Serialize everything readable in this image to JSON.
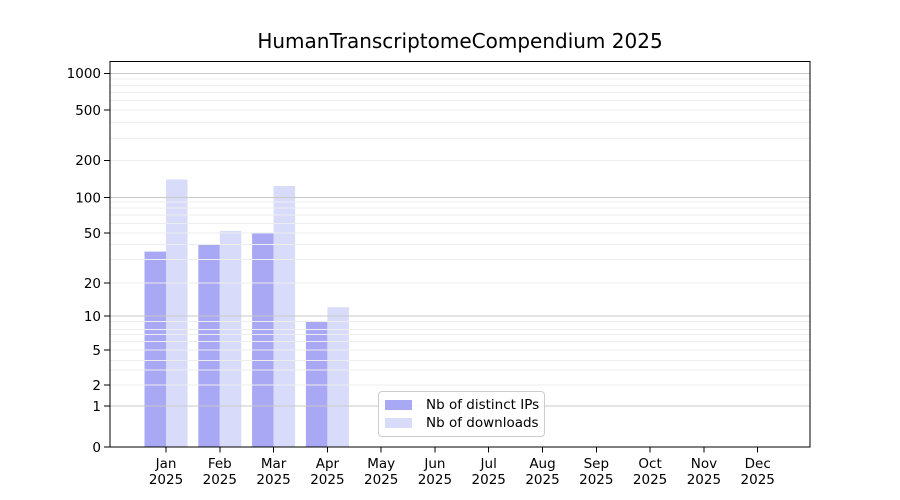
{
  "chart_data": {
    "type": "bar",
    "title": "HumanTranscriptomeCompendium 2025",
    "categories": [
      "Jan 2025",
      "Feb 2025",
      "Mar 2025",
      "Apr 2025",
      "May 2025",
      "Jun 2025",
      "Jul 2025",
      "Aug 2025",
      "Sep 2025",
      "Oct 2025",
      "Nov 2025",
      "Dec 2025"
    ],
    "series": [
      {
        "name": "Nb of distinct IPs",
        "color": "#a8a8f5",
        "values": [
          35,
          40,
          50,
          9,
          0,
          0,
          0,
          0,
          0,
          0,
          0,
          0
        ]
      },
      {
        "name": "Nb of downloads",
        "color": "#d9dbfa",
        "values": [
          140,
          52,
          124,
          12,
          0,
          0,
          0,
          0,
          0,
          0,
          0,
          0
        ]
      }
    ],
    "xlabel": "",
    "ylabel": "",
    "yscale": "symlog",
    "yticks": [
      0,
      1,
      2,
      5,
      10,
      20,
      50,
      100,
      200,
      500,
      1000
    ],
    "ylim": [
      0,
      1260
    ],
    "grid": true,
    "grid_major_color": "#c9c9c9",
    "grid_minor_color": "#ededed",
    "axis_color": "#000000",
    "legend_position": "lower center"
  }
}
